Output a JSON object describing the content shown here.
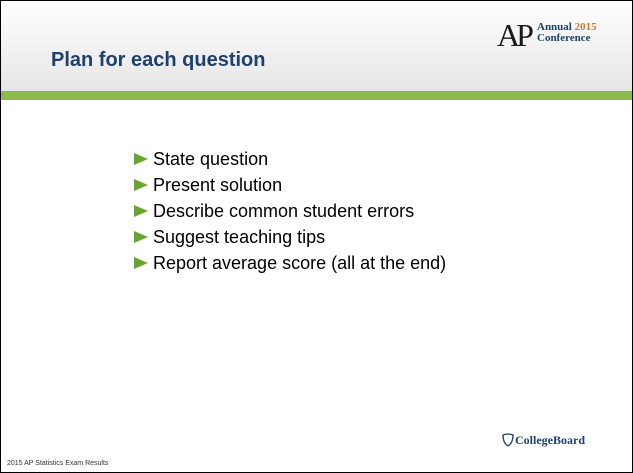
{
  "header": {
    "title": "Plan for each question"
  },
  "logo": {
    "mark": "AP",
    "line1": "Annual",
    "year": "2015",
    "line2": "Conference"
  },
  "bullets": [
    "State question",
    "Present solution",
    "Describe common student errors",
    "Suggest teaching tips",
    "Report average score (all at the end)"
  ],
  "footer": {
    "left": "2015 AP Statistics Exam Results",
    "right": "CollegeBoard"
  }
}
